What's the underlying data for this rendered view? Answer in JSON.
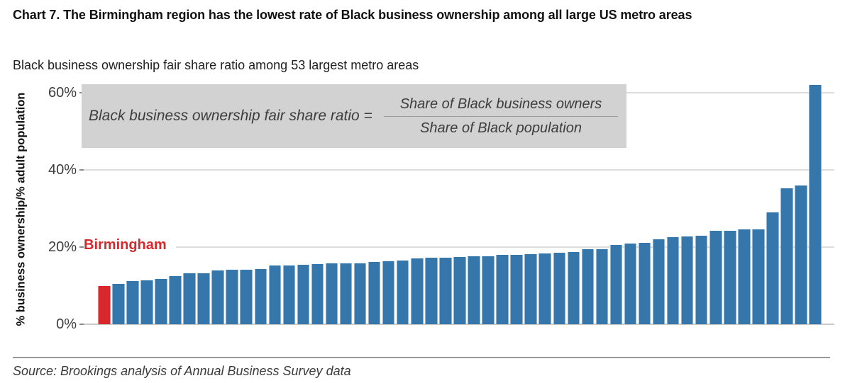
{
  "header": {
    "title": "Chart 7. The Birmingham region has the lowest rate of Black business ownership among all large US metro areas",
    "subtitle": "Black business ownership fair share ratio among 53 largest metro areas"
  },
  "formula_box": {
    "lhs": "Black business ownership fair share ratio =",
    "numerator": "Share of Black business owners",
    "denominator": "Share of Black population"
  },
  "chart_data": {
    "type": "bar",
    "title": "Chart 7. The Birmingham region has the lowest rate of Black business ownership among all large US metro areas",
    "subtitle": "Black business ownership fair share ratio among 53 largest metro areas",
    "xlabel": "",
    "ylabel": "% business ownership/% adult population",
    "ylim": [
      0,
      63
    ],
    "grid": "horizontal",
    "yticks": [
      {
        "value": 0,
        "label": "0%"
      },
      {
        "value": 20,
        "label": "20%"
      },
      {
        "value": 40,
        "label": "40%"
      },
      {
        "value": 60,
        "label": "60%"
      }
    ],
    "values": [
      10.0,
      10.5,
      11.2,
      11.3,
      11.7,
      12.5,
      13.2,
      13.2,
      14.0,
      14.2,
      14.2,
      14.4,
      15.2,
      15.3,
      15.4,
      15.6,
      15.8,
      15.8,
      15.8,
      16.1,
      16.4,
      16.6,
      17.0,
      17.2,
      17.3,
      17.5,
      17.7,
      17.7,
      17.9,
      18.0,
      18.2,
      18.3,
      18.5,
      18.7,
      19.4,
      19.5,
      20.5,
      21.0,
      21.1,
      22.1,
      22.6,
      22.7,
      23.0,
      24.2,
      24.3,
      24.6,
      24.6,
      29.0,
      35.3,
      36.0,
      62.0
    ],
    "highlight": {
      "index": 0,
      "label": "Birmingham"
    }
  },
  "source": {
    "text": "Source: Brookings analysis of Annual Business Survey data"
  },
  "colors": {
    "bar": "#3577ab",
    "highlight": "#d9282b",
    "formula_bg": "#d2d2d2",
    "gridline": "#dddddd",
    "baseline": "#c9c9c9",
    "source_rule": "#999999"
  }
}
